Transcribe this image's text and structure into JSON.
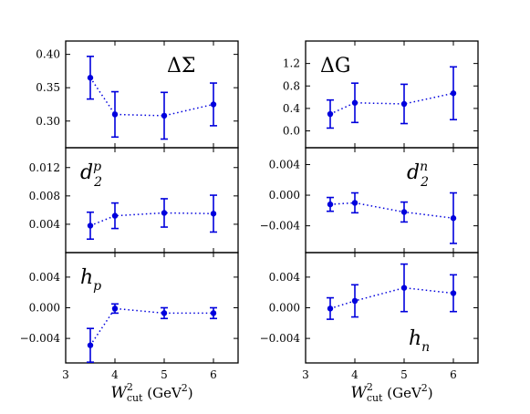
{
  "chart_data": {
    "type": "scatter",
    "x_ticks": [
      3,
      4,
      5,
      6
    ],
    "xlim": [
      3,
      6.5
    ],
    "columns": [
      {
        "xlabel": {
          "base": "W",
          "sup": "2",
          "sub": "cut",
          "unit": "(GeV",
          "unit_sup": "2",
          "unit_close": ")"
        },
        "panels": [
          {
            "label": {
              "main": "ΔΣ",
              "sup": "",
              "sub": ""
            },
            "label_pos": "top-right",
            "ylim": [
              0.26,
              0.42
            ],
            "y_ticks": [
              0.3,
              0.35,
              0.4
            ],
            "y_tick_labels": [
              "0.30",
              "0.35",
              "0.40"
            ],
            "points": [
              {
                "x": 3.5,
                "y": 0.365,
                "err": 0.032
              },
              {
                "x": 4.0,
                "y": 0.31,
                "err": 0.034
              },
              {
                "x": 5.0,
                "y": 0.308,
                "err": 0.035
              },
              {
                "x": 6.0,
                "y": 0.325,
                "err": 0.032
              }
            ]
          },
          {
            "label": {
              "main": "d",
              "sup": "p",
              "sub": "2"
            },
            "label_pos": "top-left",
            "ylim": [
              0.0,
              0.0148
            ],
            "y_ticks": [
              0.004,
              0.008,
              0.012
            ],
            "y_tick_labels": [
              "0.004",
              "0.008",
              "0.012"
            ],
            "points": [
              {
                "x": 3.5,
                "y": 0.0038,
                "err": 0.0019
              },
              {
                "x": 4.0,
                "y": 0.0052,
                "err": 0.0018
              },
              {
                "x": 5.0,
                "y": 0.0056,
                "err": 0.002
              },
              {
                "x": 6.0,
                "y": 0.0055,
                "err": 0.0026
              }
            ]
          },
          {
            "label": {
              "main": "h",
              "sup": "",
              "sub": "p"
            },
            "label_pos": "top-left",
            "ylim": [
              -0.0072,
              0.0072
            ],
            "y_ticks": [
              -0.004,
              0.0,
              0.004
            ],
            "y_tick_labels": [
              "−0.004",
              "0.000",
              "0.004"
            ],
            "points": [
              {
                "x": 3.5,
                "y": -0.0049,
                "err": 0.0022
              },
              {
                "x": 4.0,
                "y": -0.0001,
                "err": 0.0006
              },
              {
                "x": 5.0,
                "y": -0.0007,
                "err": 0.0007
              },
              {
                "x": 6.0,
                "y": -0.0007,
                "err": 0.0007
              }
            ]
          }
        ]
      },
      {
        "xlabel": {
          "base": "W",
          "sup": "2",
          "sub": "cut",
          "unit": "(GeV",
          "unit_sup": "2",
          "unit_close": ")"
        },
        "panels": [
          {
            "label": {
              "main": "ΔG",
              "sup": "",
              "sub": ""
            },
            "label_pos": "top-left",
            "ylim": [
              -0.3,
              1.6
            ],
            "y_ticks": [
              0.0,
              0.4,
              0.8,
              1.2
            ],
            "y_tick_labels": [
              "0.0",
              "0.4",
              "0.8",
              "1.2"
            ],
            "points": [
              {
                "x": 3.5,
                "y": 0.3,
                "err": 0.25
              },
              {
                "x": 4.0,
                "y": 0.5,
                "err": 0.35
              },
              {
                "x": 5.0,
                "y": 0.48,
                "err": 0.35
              },
              {
                "x": 6.0,
                "y": 0.67,
                "err": 0.47
              }
            ]
          },
          {
            "label": {
              "main": "d",
              "sup": "n",
              "sub": "2"
            },
            "label_pos": "top-right",
            "ylim": [
              -0.0075,
              0.0062
            ],
            "y_ticks": [
              -0.004,
              0.0,
              0.004
            ],
            "y_tick_labels": [
              "−0.004",
              "0.000",
              "0.004"
            ],
            "points": [
              {
                "x": 3.5,
                "y": -0.0012,
                "err": 0.0009
              },
              {
                "x": 4.0,
                "y": -0.001,
                "err": 0.0013
              },
              {
                "x": 5.0,
                "y": -0.0022,
                "err": 0.0013
              },
              {
                "x": 6.0,
                "y": -0.003,
                "err": 0.0033
              }
            ]
          },
          {
            "label": {
              "main": "h",
              "sup": "",
              "sub": "n"
            },
            "label_pos": "bottom-right",
            "ylim": [
              -0.0072,
              0.0072
            ],
            "y_ticks": [
              -0.004,
              0.0,
              0.004
            ],
            "y_tick_labels": [
              "−0.004",
              "0.000",
              "0.004"
            ],
            "points": [
              {
                "x": 3.5,
                "y": -0.0001,
                "err": 0.0014
              },
              {
                "x": 4.0,
                "y": 0.0009,
                "err": 0.0021
              },
              {
                "x": 5.0,
                "y": 0.0026,
                "err": 0.0031
              },
              {
                "x": 6.0,
                "y": 0.0019,
                "err": 0.0024
              }
            ]
          }
        ]
      }
    ],
    "colors": {
      "series": "#0000dd",
      "frame": "#000000"
    }
  }
}
